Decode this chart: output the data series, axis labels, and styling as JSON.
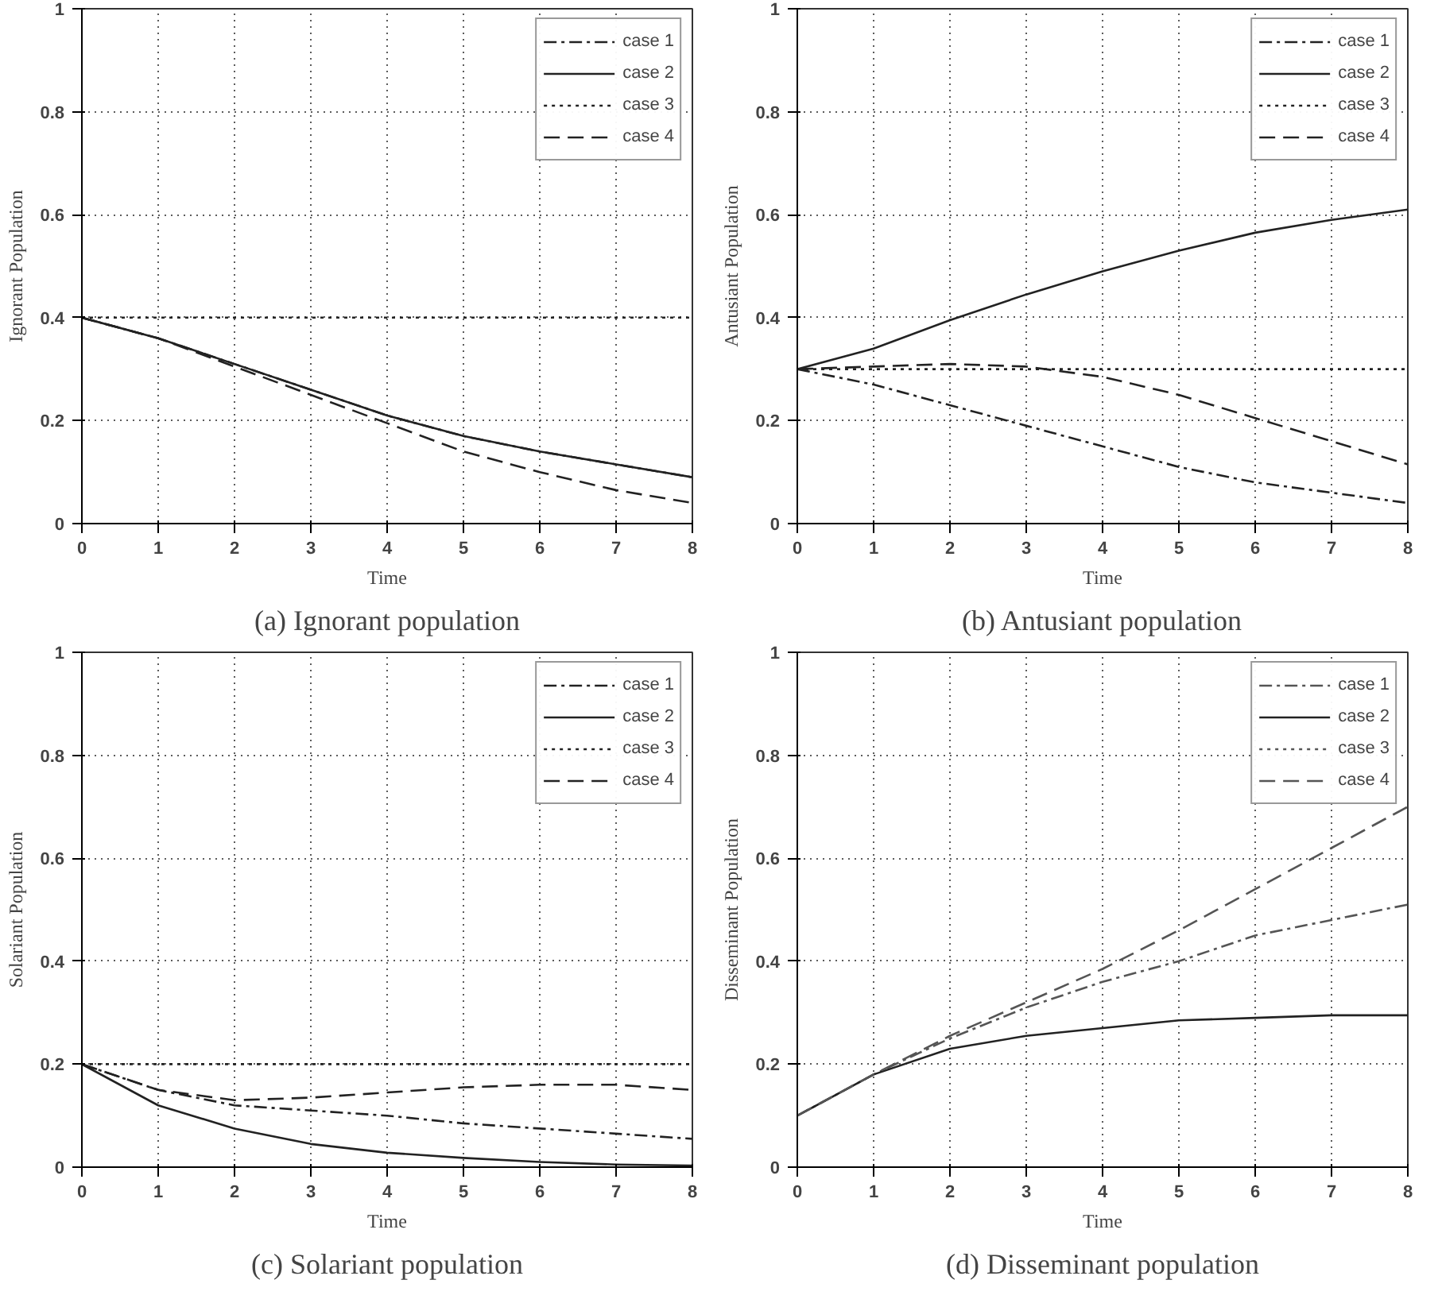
{
  "chart_data": [
    {
      "type": "line",
      "title": "(a) Ignorant population",
      "xlabel": "Time",
      "ylabel": "Ignorant Population",
      "x": [
        0,
        1,
        2,
        3,
        4,
        5,
        6,
        7,
        8
      ],
      "xlim": [
        0,
        8
      ],
      "ylim": [
        0,
        1
      ],
      "xticks": [
        0,
        1,
        2,
        3,
        4,
        5,
        6,
        7,
        8
      ],
      "yticks": [
        0,
        0.2,
        0.4,
        0.6,
        0.8,
        1
      ],
      "grid": true,
      "legend": "top right",
      "series": [
        {
          "name": "case 1",
          "color": "#222222",
          "line_style": "dashdot",
          "values": [
            0.4,
            0.36,
            0.31,
            0.26,
            0.21,
            0.17,
            0.14,
            0.115,
            0.09
          ]
        },
        {
          "name": "case 2",
          "color": "#222222",
          "line_style": "solid",
          "values": [
            0.4,
            0.36,
            0.31,
            0.26,
            0.21,
            0.17,
            0.14,
            0.115,
            0.09
          ]
        },
        {
          "name": "case 3",
          "color": "#222222",
          "line_style": "dotted",
          "values": [
            0.4,
            0.4,
            0.4,
            0.4,
            0.4,
            0.4,
            0.4,
            0.4,
            0.4
          ]
        },
        {
          "name": "case 4",
          "color": "#222222",
          "line_style": "dashed",
          "values": [
            0.4,
            0.36,
            0.305,
            0.25,
            0.195,
            0.14,
            0.1,
            0.065,
            0.04
          ]
        }
      ]
    },
    {
      "type": "line",
      "title": "(b) Antusiant population",
      "xlabel": "Time",
      "ylabel": "Antusiant Population",
      "x": [
        0,
        1,
        2,
        3,
        4,
        5,
        6,
        7,
        8
      ],
      "xlim": [
        0,
        8
      ],
      "ylim": [
        0,
        1
      ],
      "xticks": [
        0,
        1,
        2,
        3,
        4,
        5,
        6,
        7,
        8
      ],
      "yticks": [
        0,
        0.2,
        0.4,
        0.6,
        0.8,
        1
      ],
      "grid": true,
      "legend": "top right",
      "series": [
        {
          "name": "case 1",
          "color": "#222222",
          "line_style": "dashdot",
          "values": [
            0.3,
            0.27,
            0.23,
            0.19,
            0.15,
            0.11,
            0.08,
            0.06,
            0.04
          ]
        },
        {
          "name": "case 2",
          "color": "#222222",
          "line_style": "solid",
          "values": [
            0.3,
            0.34,
            0.395,
            0.445,
            0.49,
            0.53,
            0.565,
            0.59,
            0.61
          ]
        },
        {
          "name": "case 3",
          "color": "#222222",
          "line_style": "dotted",
          "values": [
            0.3,
            0.3,
            0.3,
            0.3,
            0.3,
            0.3,
            0.3,
            0.3,
            0.3
          ]
        },
        {
          "name": "case 4",
          "color": "#222222",
          "line_style": "dashed",
          "values": [
            0.3,
            0.305,
            0.31,
            0.305,
            0.285,
            0.25,
            0.205,
            0.16,
            0.115
          ]
        }
      ]
    },
    {
      "type": "line",
      "title": "(c) Solariant population",
      "xlabel": "Time",
      "ylabel": "Solariant Population",
      "x": [
        0,
        1,
        2,
        3,
        4,
        5,
        6,
        7,
        8
      ],
      "xlim": [
        0,
        8
      ],
      "ylim": [
        0,
        1
      ],
      "xticks": [
        0,
        1,
        2,
        3,
        4,
        5,
        6,
        7,
        8
      ],
      "yticks": [
        0,
        0.2,
        0.4,
        0.6,
        0.8,
        1
      ],
      "grid": true,
      "legend": "top right",
      "series": [
        {
          "name": "case 1",
          "color": "#222222",
          "line_style": "dashdot",
          "values": [
            0.2,
            0.15,
            0.12,
            0.11,
            0.1,
            0.085,
            0.075,
            0.065,
            0.055
          ]
        },
        {
          "name": "case 2",
          "color": "#222222",
          "line_style": "solid",
          "values": [
            0.2,
            0.12,
            0.075,
            0.045,
            0.028,
            0.018,
            0.01,
            0.005,
            0.003
          ]
        },
        {
          "name": "case 3",
          "color": "#222222",
          "line_style": "dotted",
          "values": [
            0.2,
            0.2,
            0.2,
            0.2,
            0.2,
            0.2,
            0.2,
            0.2,
            0.2
          ]
        },
        {
          "name": "case 4",
          "color": "#222222",
          "line_style": "dashed",
          "values": [
            0.2,
            0.15,
            0.13,
            0.135,
            0.145,
            0.155,
            0.16,
            0.16,
            0.15
          ]
        }
      ]
    },
    {
      "type": "line",
      "title": "(d) Disseminant population",
      "xlabel": "Time",
      "ylabel": "Disseminant Population",
      "x": [
        0,
        1,
        2,
        3,
        4,
        5,
        6,
        7,
        8
      ],
      "xlim": [
        0,
        8
      ],
      "ylim": [
        0,
        1
      ],
      "xticks": [
        0,
        1,
        2,
        3,
        4,
        5,
        6,
        7,
        8
      ],
      "yticks": [
        0,
        0.2,
        0.4,
        0.6,
        0.8,
        1
      ],
      "grid": true,
      "legend": "top right",
      "series": [
        {
          "name": "case 1",
          "color": "#555555",
          "line_style": "dashdot",
          "values": [
            0.1,
            0.18,
            0.25,
            0.31,
            0.36,
            0.4,
            0.45,
            0.48,
            0.51
          ]
        },
        {
          "name": "case 2",
          "color": "#222222",
          "line_style": "solid",
          "values": [
            0.1,
            0.18,
            0.23,
            0.255,
            0.27,
            0.285,
            0.29,
            0.295,
            0.295
          ]
        },
        {
          "name": "case 3",
          "color": "#555555",
          "line_style": "dotted",
          "values": [
            null,
            null,
            null,
            null,
            null,
            null,
            null,
            null,
            null
          ]
        },
        {
          "name": "case 4",
          "color": "#555555",
          "line_style": "dashed",
          "values": [
            0.1,
            0.18,
            0.255,
            0.32,
            0.385,
            0.46,
            0.54,
            0.62,
            0.7
          ]
        }
      ]
    }
  ]
}
